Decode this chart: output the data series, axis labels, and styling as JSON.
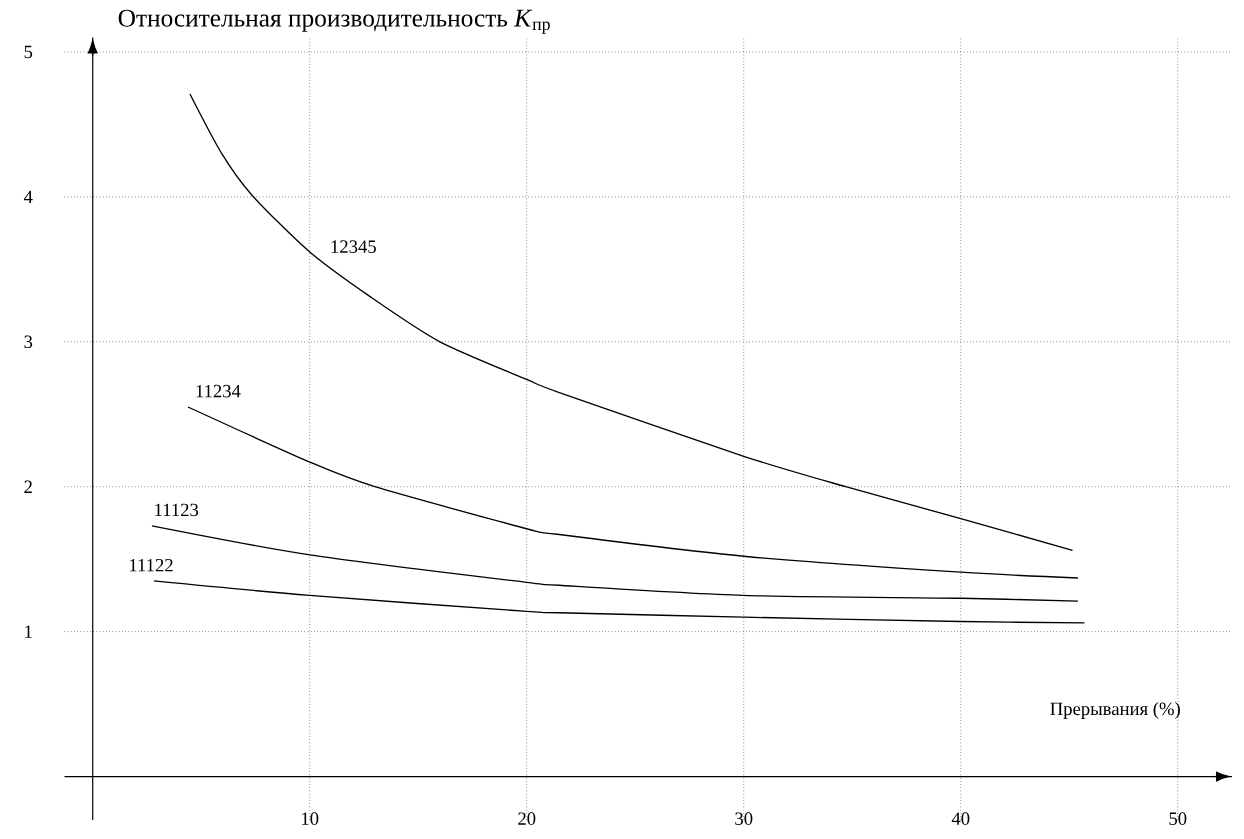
{
  "chart_data": {
    "type": "line",
    "xlabel": "Прерывания (%)",
    "ylabel": "Относительная производительность *K*$_{пр}$",
    "series": [
      {
        "name": "12345",
        "color": "#000000",
        "x": [
          4.48,
          5.94,
          7.35,
          10,
          12.8,
          16.0,
          20,
          21.5,
          30,
          34.7,
          40,
          45.15
        ],
        "values": [
          4.71,
          4.3,
          4.01,
          3.62,
          3.31,
          3.0,
          2.74,
          2.65,
          2.21,
          2.0,
          1.78,
          1.56
        ]
      },
      {
        "name": "11234",
        "color": "#000000",
        "x": [
          4.39,
          10,
          13.0,
          20,
          21.5,
          30,
          40,
          45.4
        ],
        "values": [
          2.55,
          2.17,
          2.0,
          1.71,
          1.67,
          1.52,
          1.41,
          1.37
        ]
      },
      {
        "name": "11123",
        "color": "#000000",
        "x": [
          2.73,
          10,
          20,
          21.5,
          30,
          40,
          45.4
        ],
        "values": [
          1.73,
          1.53,
          1.34,
          1.32,
          1.25,
          1.23,
          1.21
        ]
      },
      {
        "name": "11122",
        "color": "#000000",
        "x": [
          2.82,
          10,
          20,
          21.5,
          30,
          40,
          45.7
        ],
        "values": [
          1.35,
          1.25,
          1.14,
          1.13,
          1.1,
          1.07,
          1.06
        ]
      }
    ],
    "xlim": [
      -1.3,
      52.5
    ],
    "ylim": [
      -0.3,
      5.1
    ],
    "xticks": [
      10,
      20,
      30,
      40,
      50
    ],
    "yticks": [
      1,
      2,
      3,
      4,
      5
    ],
    "grid": true
  }
}
